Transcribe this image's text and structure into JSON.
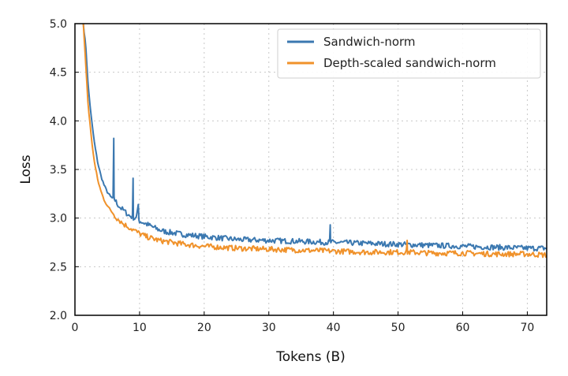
{
  "chart_data": {
    "type": "line",
    "title": "",
    "xlabel": "Tokens (B)",
    "ylabel": "Loss",
    "xlim": [
      0,
      73
    ],
    "ylim": [
      2.0,
      5.0
    ],
    "xticks": [
      0,
      10,
      20,
      30,
      40,
      50,
      60,
      70
    ],
    "yticks": [
      2.0,
      2.5,
      3.0,
      3.5,
      4.0,
      4.5,
      5.0
    ],
    "xtick_labels": [
      "0",
      "10",
      "20",
      "30",
      "40",
      "50",
      "60",
      "70"
    ],
    "ytick_labels": [
      "2.0",
      "2.5",
      "3.0",
      "3.5",
      "4.0",
      "4.5",
      "5.0"
    ],
    "grid": true,
    "legend_position": "top-right",
    "series": [
      {
        "name": "Sandwich-norm",
        "color": "#3b78b0",
        "x": [
          1.3,
          1.7,
          2,
          2.5,
          3,
          3.5,
          4,
          4.5,
          5,
          5.5,
          5.9,
          6,
          6.1,
          6.5,
          7,
          7.5,
          8,
          8.5,
          8.9,
          9,
          9.1,
          9.5,
          9.8,
          10,
          11,
          12,
          13,
          14,
          15,
          17,
          20,
          25,
          30,
          35,
          39.4,
          39.5,
          39.6,
          40,
          45,
          50,
          55,
          60,
          65,
          70,
          73
        ],
        "y": [
          5.0,
          4.75,
          4.4,
          4.05,
          3.78,
          3.58,
          3.44,
          3.34,
          3.27,
          3.22,
          3.2,
          3.82,
          3.2,
          3.15,
          3.11,
          3.08,
          3.05,
          3.02,
          3.01,
          3.41,
          3.0,
          2.99,
          3.14,
          2.97,
          2.94,
          2.91,
          2.88,
          2.86,
          2.85,
          2.83,
          2.81,
          2.78,
          2.77,
          2.76,
          2.75,
          2.93,
          2.75,
          2.75,
          2.74,
          2.73,
          2.72,
          2.71,
          2.7,
          2.69,
          2.69
        ]
      },
      {
        "name": "Depth-scaled sandwich-norm",
        "color": "#f0922b",
        "x": [
          1.3,
          1.7,
          2,
          2.5,
          3,
          3.5,
          4,
          4.5,
          5,
          5.5,
          6,
          6.5,
          7,
          7.5,
          8,
          8.5,
          9,
          9.5,
          10,
          11,
          12,
          13,
          14,
          15,
          17,
          20,
          25,
          30,
          35,
          40,
          45,
          50,
          51.3,
          51.4,
          51.5,
          55,
          60,
          65,
          70,
          73
        ],
        "y": [
          5.0,
          4.55,
          4.2,
          3.85,
          3.58,
          3.4,
          3.28,
          3.19,
          3.13,
          3.08,
          3.04,
          3.0,
          2.97,
          2.94,
          2.92,
          2.9,
          2.88,
          2.86,
          2.84,
          2.81,
          2.79,
          2.77,
          2.76,
          2.75,
          2.73,
          2.71,
          2.69,
          2.68,
          2.67,
          2.66,
          2.65,
          2.65,
          2.65,
          2.77,
          2.65,
          2.64,
          2.64,
          2.63,
          2.63,
          2.62
        ]
      }
    ]
  }
}
